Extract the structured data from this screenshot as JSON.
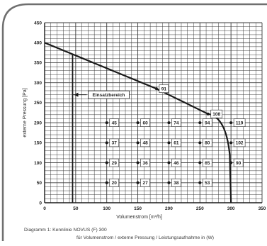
{
  "colors": {
    "frame": "#6f6f6f",
    "grid": "#3a3a3a",
    "curve": "#1a1a1a",
    "background": "#ffffff",
    "label_text": "#222222"
  },
  "chart_data": {
    "type": "line",
    "xlabel": "Volumenstrom [m³/h]",
    "ylabel": "externe Pressung [Pa]",
    "xlim": [
      0,
      350
    ],
    "ylim": [
      0,
      450
    ],
    "x_ticks": [
      "0",
      "50",
      "100",
      "150",
      "200",
      "250",
      "300",
      "350"
    ],
    "y_ticks": [
      "0",
      "50",
      "100",
      "150",
      "200",
      "250",
      "300",
      "350",
      "400",
      "450"
    ],
    "grid": true,
    "series": [
      {
        "values": [
          {
            "x": 0,
            "y": 400
          },
          {
            "x": 180,
            "y": 285
          },
          {
            "x": 263,
            "y": 222
          },
          {
            "x": 280,
            "y": 205
          },
          {
            "x": 292,
            "y": 175
          },
          {
            "x": 298,
            "y": 120
          },
          {
            "x": 300,
            "y": 0
          }
        ]
      }
    ],
    "range_marker": {
      "label": "Einsatzbereich",
      "x_min": 45,
      "x_max": 300,
      "arrow_y": 270
    },
    "points": [
      {
        "x": 100,
        "y": 200,
        "label": "45"
      },
      {
        "x": 100,
        "y": 150,
        "label": "37"
      },
      {
        "x": 100,
        "y": 100,
        "label": "29"
      },
      {
        "x": 100,
        "y": 50,
        "label": "20"
      },
      {
        "x": 150,
        "y": 200,
        "label": "60"
      },
      {
        "x": 150,
        "y": 150,
        "label": "48"
      },
      {
        "x": 150,
        "y": 100,
        "label": "36"
      },
      {
        "x": 150,
        "y": 50,
        "label": "27"
      },
      {
        "x": 200,
        "y": 200,
        "label": "74"
      },
      {
        "x": 200,
        "y": 150,
        "label": "61"
      },
      {
        "x": 200,
        "y": 100,
        "label": "46"
      },
      {
        "x": 200,
        "y": 50,
        "label": "38"
      },
      {
        "x": 250,
        "y": 200,
        "label": "94"
      },
      {
        "x": 250,
        "y": 150,
        "label": "80"
      },
      {
        "x": 250,
        "y": 100,
        "label": "65"
      },
      {
        "x": 250,
        "y": 50,
        "label": "53"
      },
      {
        "x": 300,
        "y": 200,
        "label": "119"
      },
      {
        "x": 300,
        "y": 150,
        "label": "102"
      },
      {
        "x": 300,
        "y": 100,
        "label": "90"
      },
      {
        "x": 180,
        "y": 285,
        "label": "91"
      },
      {
        "x": 263,
        "y": 222,
        "label": "108"
      }
    ]
  },
  "caption": {
    "line1": "Diagramm 1: Kennlinie NOVUS (F) 300",
    "line2": "für Volumenstrom / externe Pressung / Leistungsaufnahme in (W)"
  }
}
